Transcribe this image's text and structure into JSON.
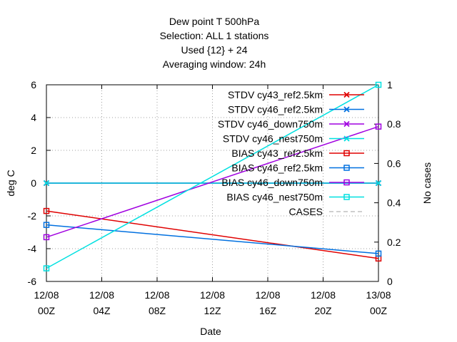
{
  "chart_data": {
    "type": "line",
    "title_lines": [
      "Dew point T 500hPa",
      "Selection: ALL      1 stations",
      "Used {12} + 24",
      "Averaging window: 24h"
    ],
    "xlabel": "Date",
    "ylabel": "deg C",
    "y2label": "No cases",
    "x_ticks": [
      {
        "hours": 0,
        "line1": "12/08",
        "line2": "00Z"
      },
      {
        "hours": 4,
        "line1": "12/08",
        "line2": "04Z"
      },
      {
        "hours": 8,
        "line1": "12/08",
        "line2": "08Z"
      },
      {
        "hours": 12,
        "line1": "12/08",
        "line2": "12Z"
      },
      {
        "hours": 16,
        "line1": "12/08",
        "line2": "16Z"
      },
      {
        "hours": 20,
        "line1": "12/08",
        "line2": "20Z"
      },
      {
        "hours": 24,
        "line1": "13/08",
        "line2": "00Z"
      }
    ],
    "xlim": [
      0,
      24
    ],
    "ylim": [
      -6,
      6
    ],
    "y_ticks": [
      -6,
      -4,
      -2,
      0,
      2,
      4,
      6
    ],
    "y2lim": [
      0,
      1
    ],
    "y2_ticks": [
      "0",
      "0.2",
      "0.4",
      "0.6",
      "0.8",
      "1"
    ],
    "grid": true,
    "legend_position": "top-right",
    "series": [
      {
        "name": "STDV cy43_ref2.5km",
        "color": "#e00000",
        "marker": "x",
        "axis": "y",
        "x": [
          0,
          24
        ],
        "y": [
          0,
          0
        ]
      },
      {
        "name": "STDV cy46_ref2.5km",
        "color": "#0070e0",
        "marker": "x",
        "axis": "y",
        "x": [
          0,
          24
        ],
        "y": [
          0,
          0
        ]
      },
      {
        "name": "STDV cy46_down750m",
        "color": "#a000e0",
        "marker": "x",
        "axis": "y",
        "x": [
          0,
          24
        ],
        "y": [
          0,
          0
        ]
      },
      {
        "name": "STDV cy46_nest750m",
        "color": "#00e0e0",
        "marker": "x",
        "axis": "y",
        "x": [
          0,
          24
        ],
        "y": [
          0,
          0
        ]
      },
      {
        "name": "BIAS cy43_ref2.5km",
        "color": "#e00000",
        "marker": "box",
        "axis": "y",
        "x": [
          0,
          24
        ],
        "y": [
          -1.7,
          -4.6
        ]
      },
      {
        "name": "BIAS cy46_ref2.5km",
        "color": "#0070e0",
        "marker": "box",
        "axis": "y",
        "x": [
          0,
          24
        ],
        "y": [
          -2.55,
          -4.3
        ]
      },
      {
        "name": "BIAS cy46_down750m",
        "color": "#a000e0",
        "marker": "box",
        "axis": "y",
        "x": [
          0,
          24
        ],
        "y": [
          -3.3,
          3.45
        ]
      },
      {
        "name": "BIAS cy46_nest750m",
        "color": "#00e0e0",
        "marker": "box",
        "axis": "y",
        "x": [
          0,
          24
        ],
        "y": [
          -5.2,
          6.0
        ]
      },
      {
        "name": "CASES",
        "color": "#a0a0a0",
        "marker": "none",
        "axis": "y2",
        "dashed": true,
        "x": [],
        "y": []
      }
    ]
  }
}
